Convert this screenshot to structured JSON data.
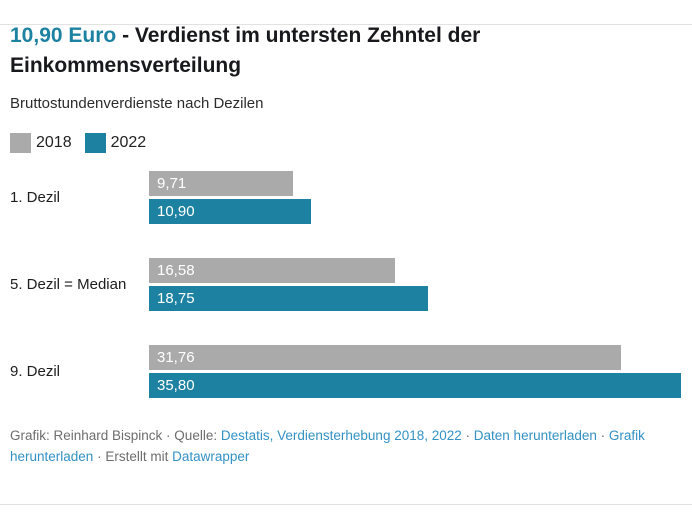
{
  "header": {
    "title_accent": "10,90 Euro",
    "title_rest": " - Verdienst im untersten Zehntel der Einkommensverteilung",
    "subtitle": "Bruttostundenverdienste nach Dezilen"
  },
  "colors": {
    "accent_teal": "#1d81a2",
    "bar_gray": "#aaaaaa",
    "link_blue": "#3391c4",
    "footer_gray": "#6d6d6d"
  },
  "legend": [
    {
      "label": "2018",
      "color": "#aaaaaa"
    },
    {
      "label": "2022",
      "color": "#1d81a2"
    }
  ],
  "chart_data": {
    "type": "bar",
    "orientation": "horizontal",
    "title": "10,90 Euro - Verdienst im untersten Zehntel der Einkommensverteilung",
    "subtitle": "Bruttostundenverdienste nach Dezilen",
    "categories": [
      "1. Dezil",
      "5. Dezil = Median",
      "9. Dezil"
    ],
    "series": [
      {
        "name": "2018",
        "color": "#aaaaaa",
        "values": [
          9.71,
          16.58,
          31.76
        ],
        "labels": [
          "9,71",
          "16,58",
          "31,76"
        ]
      },
      {
        "name": "2022",
        "color": "#1d81a2",
        "values": [
          10.9,
          18.75,
          35.8
        ],
        "labels": [
          "10,90",
          "18,75",
          "35,80"
        ]
      }
    ],
    "xlim": [
      0,
      35.8
    ],
    "value_labels_inside": true,
    "grid": false,
    "legend_position": "top-left"
  },
  "footer": {
    "credit_prefix": "Grafik: Reinhard Bispinck · Quelle: ",
    "source_link": "Destatis, Verdiensterhebung 2018, 2022",
    "sep1": " · ",
    "data_download_link": "Daten herunterladen",
    "sep2": " · ",
    "chart_download_link": "Grafik herunterladen",
    "sep3": " · Erstellt mit ",
    "datawrapper_link": "Datawrapper"
  }
}
